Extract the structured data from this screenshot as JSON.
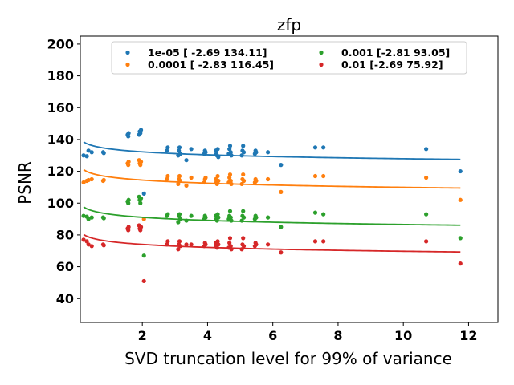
{
  "chart_data": {
    "type": "scatter",
    "title": "zfp",
    "xlabel": "SVD truncation level for 99% of variance",
    "ylabel": "PSNR",
    "xlim": [
      0.1,
      12.9
    ],
    "ylim": [
      25,
      205
    ],
    "xticks": [
      2,
      4,
      6,
      8,
      10,
      12
    ],
    "yticks": [
      40,
      60,
      80,
      100,
      120,
      140,
      160,
      180,
      200
    ],
    "grid": false,
    "legend": {
      "placement": "top-center",
      "columns": 2
    },
    "series": [
      {
        "name": "1e-05 [ -2.69 134.11]",
        "color": "#1f77b4",
        "fit": {
          "a": -2.69,
          "b": 134.11
        },
        "points": [
          [
            0.2,
            130
          ],
          [
            0.3,
            129.5
          ],
          [
            0.35,
            133
          ],
          [
            0.45,
            132
          ],
          [
            0.8,
            132
          ],
          [
            0.82,
            131.5
          ],
          [
            1.55,
            143
          ],
          [
            1.57,
            142
          ],
          [
            1.58,
            144
          ],
          [
            1.9,
            143
          ],
          [
            1.92,
            145
          ],
          [
            1.94,
            144
          ],
          [
            1.96,
            146
          ],
          [
            2.05,
            106
          ],
          [
            2.75,
            133
          ],
          [
            2.78,
            135
          ],
          [
            3.1,
            130
          ],
          [
            3.12,
            133
          ],
          [
            3.14,
            135
          ],
          [
            3.16,
            131
          ],
          [
            3.35,
            127
          ],
          [
            3.5,
            134
          ],
          [
            3.9,
            131
          ],
          [
            3.92,
            133
          ],
          [
            3.94,
            132
          ],
          [
            4.25,
            133
          ],
          [
            4.27,
            131
          ],
          [
            4.29,
            130
          ],
          [
            4.31,
            134
          ],
          [
            4.33,
            129
          ],
          [
            4.65,
            131
          ],
          [
            4.67,
            134
          ],
          [
            4.69,
            136
          ],
          [
            4.71,
            132
          ],
          [
            4.73,
            130
          ],
          [
            5.05,
            130
          ],
          [
            5.07,
            133
          ],
          [
            5.09,
            136
          ],
          [
            5.11,
            132
          ],
          [
            5.45,
            131
          ],
          [
            5.47,
            133
          ],
          [
            5.49,
            132
          ],
          [
            5.85,
            132
          ],
          [
            6.25,
            124
          ],
          [
            7.3,
            135
          ],
          [
            7.55,
            135
          ],
          [
            10.7,
            134
          ],
          [
            11.75,
            120
          ]
        ]
      },
      {
        "name": "0.0001 [ -2.83 116.45]",
        "color": "#ff7f0e",
        "fit": {
          "a": -2.83,
          "b": 116.45
        },
        "points": [
          [
            0.2,
            113
          ],
          [
            0.3,
            114
          ],
          [
            0.35,
            114.5
          ],
          [
            0.45,
            115
          ],
          [
            0.8,
            114
          ],
          [
            0.82,
            114.5
          ],
          [
            1.55,
            125
          ],
          [
            1.57,
            124
          ],
          [
            1.58,
            126
          ],
          [
            1.9,
            127
          ],
          [
            1.92,
            125
          ],
          [
            1.94,
            124
          ],
          [
            1.96,
            126
          ],
          [
            2.05,
            90
          ],
          [
            2.75,
            115
          ],
          [
            2.78,
            117
          ],
          [
            3.1,
            112
          ],
          [
            3.12,
            115
          ],
          [
            3.14,
            117
          ],
          [
            3.16,
            114
          ],
          [
            3.35,
            111
          ],
          [
            3.5,
            116
          ],
          [
            3.9,
            113
          ],
          [
            3.92,
            115
          ],
          [
            3.94,
            116
          ],
          [
            4.25,
            115
          ],
          [
            4.27,
            113
          ],
          [
            4.29,
            112
          ],
          [
            4.31,
            117
          ],
          [
            4.33,
            114
          ],
          [
            4.65,
            113
          ],
          [
            4.67,
            116
          ],
          [
            4.69,
            118
          ],
          [
            4.71,
            114
          ],
          [
            4.73,
            112
          ],
          [
            5.05,
            112
          ],
          [
            5.07,
            115
          ],
          [
            5.09,
            118
          ],
          [
            5.11,
            114
          ],
          [
            5.45,
            113
          ],
          [
            5.47,
            115
          ],
          [
            5.49,
            114
          ],
          [
            5.85,
            115
          ],
          [
            6.25,
            107
          ],
          [
            7.3,
            117
          ],
          [
            7.55,
            117
          ],
          [
            10.7,
            116
          ],
          [
            11.75,
            102
          ]
        ]
      },
      {
        "name": "0.001 [-2.81 93.05]",
        "color": "#2ca02c",
        "fit": {
          "a": -2.81,
          "b": 93.05
        },
        "points": [
          [
            0.2,
            92
          ],
          [
            0.3,
            91.5
          ],
          [
            0.35,
            90
          ],
          [
            0.45,
            91
          ],
          [
            0.8,
            91
          ],
          [
            0.82,
            90.5
          ],
          [
            1.55,
            101
          ],
          [
            1.57,
            100
          ],
          [
            1.58,
            102
          ],
          [
            1.9,
            104
          ],
          [
            1.92,
            102
          ],
          [
            1.94,
            100
          ],
          [
            1.96,
            103
          ],
          [
            2.05,
            67
          ],
          [
            2.75,
            92
          ],
          [
            2.78,
            93
          ],
          [
            3.1,
            88
          ],
          [
            3.12,
            92
          ],
          [
            3.14,
            93
          ],
          [
            3.16,
            90
          ],
          [
            3.35,
            89
          ],
          [
            3.5,
            92
          ],
          [
            3.9,
            90
          ],
          [
            3.92,
            92
          ],
          [
            3.94,
            91
          ],
          [
            4.25,
            92
          ],
          [
            4.27,
            90
          ],
          [
            4.29,
            89
          ],
          [
            4.31,
            93
          ],
          [
            4.33,
            91
          ],
          [
            4.65,
            90
          ],
          [
            4.67,
            92
          ],
          [
            4.69,
            95
          ],
          [
            4.71,
            91
          ],
          [
            4.73,
            89
          ],
          [
            5.05,
            89
          ],
          [
            5.07,
            92
          ],
          [
            5.09,
            95
          ],
          [
            5.11,
            91
          ],
          [
            5.45,
            90
          ],
          [
            5.47,
            92
          ],
          [
            5.49,
            91
          ],
          [
            5.85,
            91
          ],
          [
            6.25,
            85
          ],
          [
            7.3,
            94
          ],
          [
            7.55,
            93
          ],
          [
            10.7,
            93
          ],
          [
            11.75,
            78
          ]
        ]
      },
      {
        "name": "0.01 [-2.69 75.92]",
        "color": "#d62728",
        "fit": {
          "a": -2.69,
          "b": 75.92
        },
        "points": [
          [
            0.2,
            77
          ],
          [
            0.3,
            76
          ],
          [
            0.35,
            74
          ],
          [
            0.45,
            73
          ],
          [
            0.8,
            74
          ],
          [
            0.82,
            73.5
          ],
          [
            1.55,
            84
          ],
          [
            1.57,
            83
          ],
          [
            1.58,
            85
          ],
          [
            1.9,
            86
          ],
          [
            1.92,
            84
          ],
          [
            1.94,
            83
          ],
          [
            1.96,
            85
          ],
          [
            2.05,
            51
          ],
          [
            2.75,
            74
          ],
          [
            2.78,
            76
          ],
          [
            3.1,
            71
          ],
          [
            3.12,
            74
          ],
          [
            3.14,
            76
          ],
          [
            3.16,
            73
          ],
          [
            3.35,
            74
          ],
          [
            3.5,
            74
          ],
          [
            3.9,
            73
          ],
          [
            3.92,
            75
          ],
          [
            3.94,
            74
          ],
          [
            4.25,
            75
          ],
          [
            4.27,
            73
          ],
          [
            4.29,
            72
          ],
          [
            4.31,
            76
          ],
          [
            4.33,
            74
          ],
          [
            4.65,
            72
          ],
          [
            4.67,
            75
          ],
          [
            4.69,
            78
          ],
          [
            4.71,
            73
          ],
          [
            4.73,
            71
          ],
          [
            5.05,
            71
          ],
          [
            5.07,
            74
          ],
          [
            5.09,
            78
          ],
          [
            5.11,
            73
          ],
          [
            5.45,
            73
          ],
          [
            5.47,
            75
          ],
          [
            5.49,
            74
          ],
          [
            5.85,
            74
          ],
          [
            6.25,
            69
          ],
          [
            7.3,
            76
          ],
          [
            7.55,
            76
          ],
          [
            10.7,
            76
          ],
          [
            11.75,
            62
          ]
        ]
      }
    ]
  }
}
